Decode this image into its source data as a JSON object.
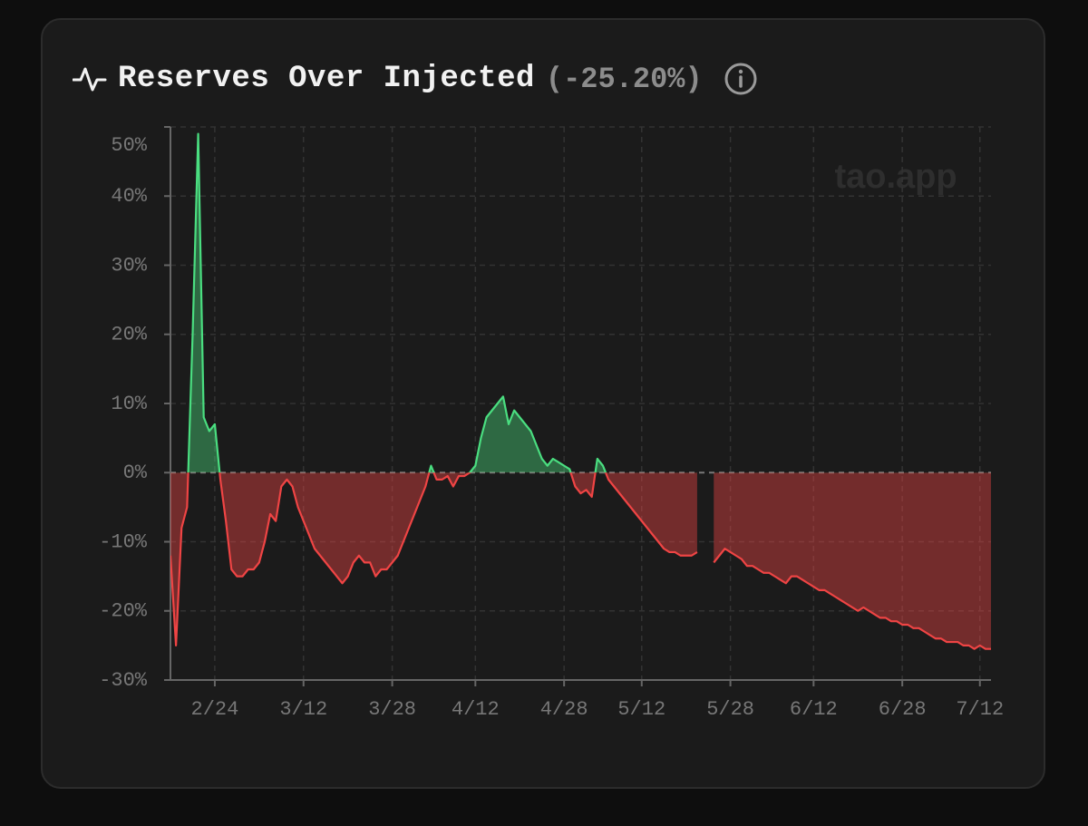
{
  "chart_data": {
    "type": "area",
    "title": "Reserves Over Injected",
    "subtitle": "(-25.20%)",
    "watermark": "tao.app",
    "x": [
      "2/16",
      "2/17",
      "2/18",
      "2/19",
      "2/20",
      "2/21",
      "2/22",
      "2/23",
      "2/24",
      "2/25",
      "2/26",
      "2/27",
      "2/28",
      "3/1",
      "3/2",
      "3/3",
      "3/4",
      "3/5",
      "3/6",
      "3/7",
      "3/8",
      "3/9",
      "3/10",
      "3/11",
      "3/12",
      "3/13",
      "3/14",
      "3/15",
      "3/16",
      "3/17",
      "3/18",
      "3/19",
      "3/20",
      "3/21",
      "3/22",
      "3/23",
      "3/24",
      "3/25",
      "3/26",
      "3/27",
      "3/28",
      "3/29",
      "3/30",
      "3/31",
      "4/1",
      "4/2",
      "4/3",
      "4/4",
      "4/5",
      "4/6",
      "4/7",
      "4/8",
      "4/9",
      "4/10",
      "4/11",
      "4/12",
      "4/13",
      "4/14",
      "4/15",
      "4/16",
      "4/17",
      "4/18",
      "4/19",
      "4/20",
      "4/21",
      "4/22",
      "4/23",
      "4/24",
      "4/25",
      "4/26",
      "4/27",
      "4/28",
      "4/29",
      "4/30",
      "5/1",
      "5/2",
      "5/3",
      "5/4",
      "5/5",
      "5/6",
      "5/7",
      "5/8",
      "5/9",
      "5/10",
      "5/11",
      "5/12",
      "5/13",
      "5/14",
      "5/15",
      "5/16",
      "5/17",
      "5/18",
      "5/19",
      "5/20",
      "5/21",
      "5/22",
      "5/23",
      "5/24",
      "5/25",
      "5/26",
      "5/27",
      "5/28",
      "5/29",
      "5/30",
      "5/31",
      "6/1",
      "6/2",
      "6/3",
      "6/4",
      "6/5",
      "6/6",
      "6/7",
      "6/8",
      "6/9",
      "6/10",
      "6/11",
      "6/12",
      "6/13",
      "6/14",
      "6/15",
      "6/16",
      "6/17",
      "6/18",
      "6/19",
      "6/20",
      "6/21",
      "6/22",
      "6/23",
      "6/24",
      "6/25",
      "6/26",
      "6/27",
      "6/28",
      "6/29",
      "6/30",
      "7/1",
      "7/2",
      "7/3",
      "7/4",
      "7/5",
      "7/6",
      "7/7",
      "7/8",
      "7/9",
      "7/10",
      "7/11",
      "7/12",
      "7/13",
      "7/14"
    ],
    "values": [
      -12,
      -25,
      -8,
      -5,
      20,
      49,
      8,
      6,
      7,
      -1,
      -7,
      -14,
      -15,
      -15,
      -14,
      -14,
      -13,
      -10,
      -6,
      -7,
      -2,
      -1,
      -2,
      -5,
      -7,
      -9,
      -11,
      -12,
      -13,
      -14,
      -15,
      -16,
      -15,
      -13,
      -12,
      -13,
      -13,
      -15,
      -14,
      -14,
      -13,
      -12,
      -10,
      -8,
      -6,
      -4,
      -2,
      1,
      -1,
      -1,
      -0.5,
      -2,
      -0.5,
      -0.5,
      0,
      1,
      5,
      8,
      9,
      10,
      11,
      7,
      9,
      8,
      7,
      6,
      4,
      2,
      1,
      2,
      1.5,
      1,
      0.5,
      -2,
      -3,
      -2.5,
      -3.5,
      2,
      1,
      -1,
      -2,
      -3,
      -4,
      -5,
      -6,
      -7,
      -8,
      -9,
      -10,
      -11,
      -11.5,
      -11.5,
      -12,
      -12,
      -12,
      -11.5,
      null,
      null,
      -13,
      -12,
      -11,
      -11.5,
      -12,
      -12.5,
      -13.5,
      -13.5,
      -14,
      -14.5,
      -14.5,
      -15,
      -15.5,
      -16,
      -15,
      -15,
      -15.5,
      -16,
      -16.5,
      -17,
      -17,
      -17.5,
      -18,
      -18.5,
      -19,
      -19.5,
      -20,
      -19.5,
      -20,
      -20.5,
      -21,
      -21,
      -21.5,
      -21.5,
      -22,
      -22,
      -22.5,
      -22.5,
      -23,
      -23.5,
      -24,
      -24,
      -24.5,
      -24.5,
      -24.5,
      -25,
      -25,
      -25.5,
      -25,
      -25.5,
      -25.5
    ],
    "xticks": [
      "2/24",
      "3/12",
      "3/28",
      "4/12",
      "4/28",
      "5/12",
      "5/28",
      "6/12",
      "6/28",
      "7/12"
    ],
    "ylim": [
      -30,
      50
    ],
    "yticks": [
      {
        "value": -30,
        "label": "-30%"
      },
      {
        "value": -20,
        "label": "-20%"
      },
      {
        "value": -10,
        "label": "-10%"
      },
      {
        "value": 0,
        "label": "0%"
      },
      {
        "value": 10,
        "label": "10%"
      },
      {
        "value": 20,
        "label": "20%"
      },
      {
        "value": 30,
        "label": "30%"
      },
      {
        "value": 40,
        "label": "40%"
      },
      {
        "value": 50,
        "label": "50%"
      }
    ],
    "grid": true,
    "positive_color": "#4ade80",
    "negative_color": "#ef4444"
  }
}
